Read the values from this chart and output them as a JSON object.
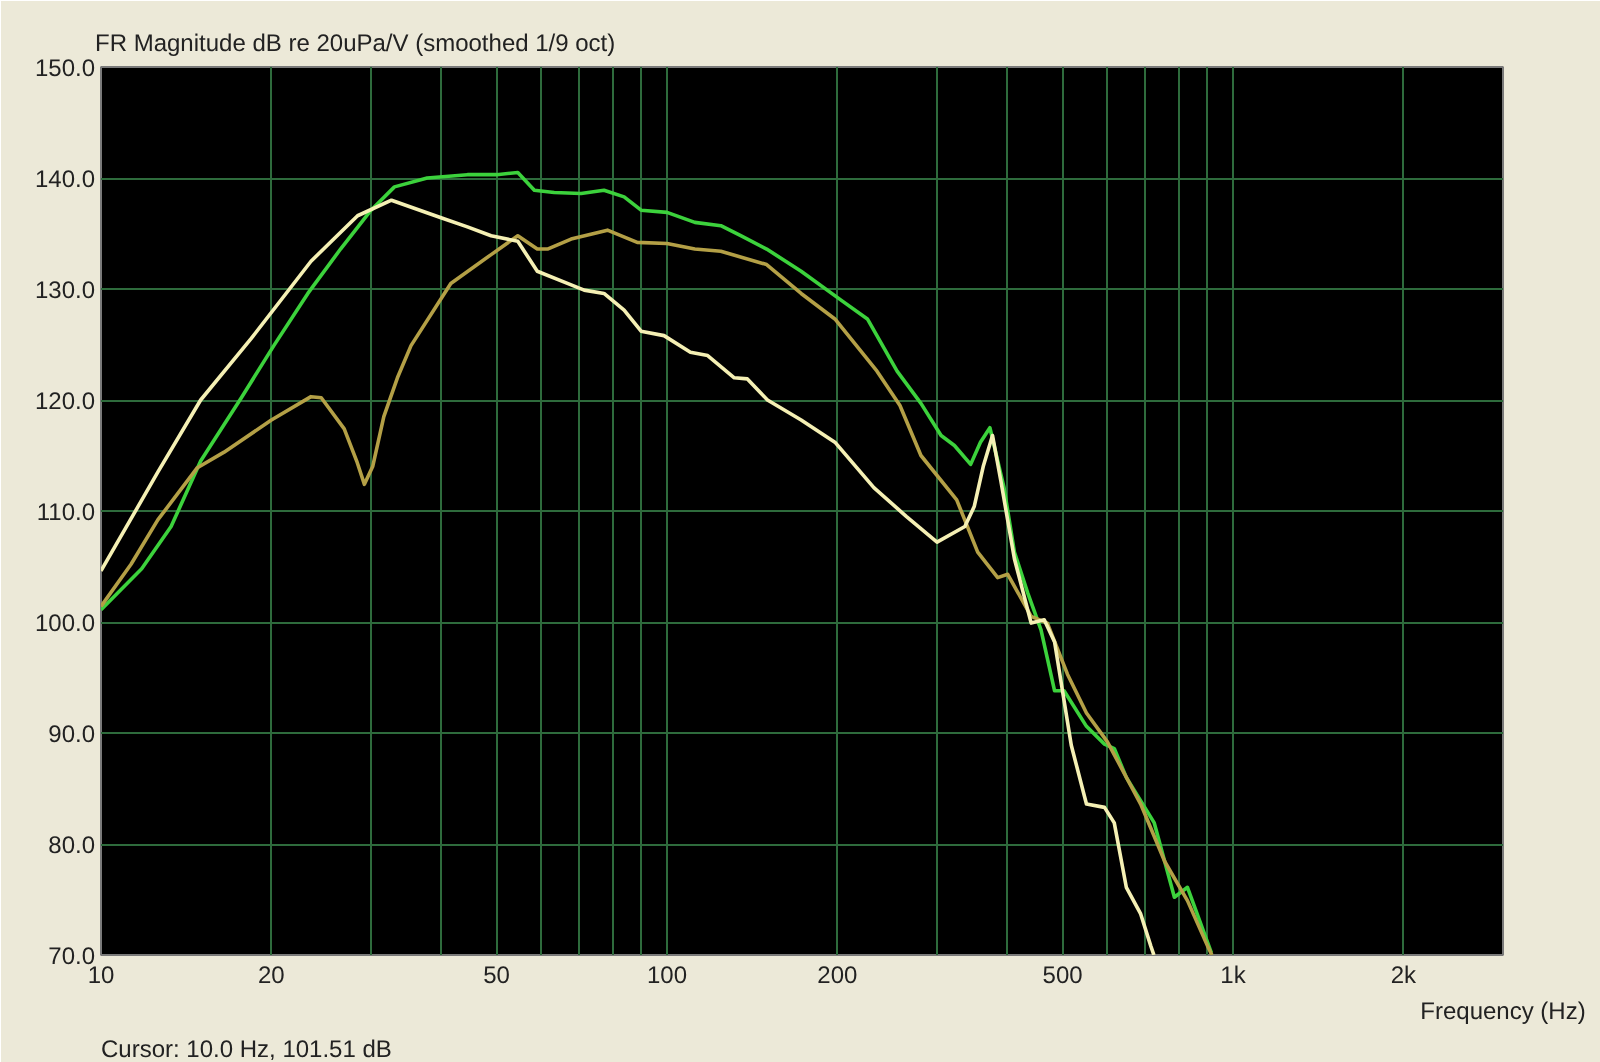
{
  "chart_data": {
    "type": "line",
    "title": "FR Magnitude dB re 20uPa/V (smoothed 1/9 oct)",
    "xlabel": "Frequency (Hz)",
    "annotations": [
      "Cursor: 10.0 Hz, 101.51 dB"
    ],
    "log": "x",
    "grid": true,
    "xlim": [
      10,
      3000
    ],
    "ylim": [
      70,
      150
    ],
    "xticks": [
      10,
      20,
      {
        "value": 30,
        "label": null
      },
      {
        "value": 40,
        "label": null
      },
      50,
      {
        "value": 60,
        "label": null
      },
      {
        "value": 70,
        "label": null
      },
      {
        "value": 80,
        "label": null
      },
      {
        "value": 90,
        "label": null
      },
      100,
      200,
      {
        "value": 300,
        "label": null
      },
      {
        "value": 400,
        "label": null
      },
      500,
      {
        "value": 600,
        "label": null
      },
      {
        "value": 700,
        "label": null
      },
      {
        "value": 800,
        "label": null
      },
      {
        "value": 900,
        "label": null
      },
      {
        "value": 1000,
        "label": "1k"
      },
      {
        "value": 2000,
        "label": "2k"
      }
    ],
    "yticks": [
      {
        "value": 70,
        "label": "70.0"
      },
      {
        "value": 80,
        "label": "80.0"
      },
      {
        "value": 90,
        "label": "90.0"
      },
      {
        "value": 100,
        "label": "100.0"
      },
      {
        "value": 110,
        "label": "110.0"
      },
      {
        "value": 120,
        "label": "120.0"
      },
      {
        "value": 130,
        "label": "130.0"
      },
      {
        "value": 140,
        "label": "140.0"
      },
      {
        "value": 150,
        "label": "150.0"
      }
    ],
    "series": [
      {
        "color": "#3cd23c",
        "x": [
          10,
          11.8,
          13.3,
          15,
          17.7,
          20.2,
          23.2,
          26.5,
          30,
          33,
          37.7,
          44.4,
          50,
          54.5,
          58.3,
          63.2,
          70.5,
          77.4,
          84,
          90,
          100,
          112,
          124.5,
          135,
          150,
          172.6,
          203,
          226,
          255,
          281,
          305,
          322,
          344,
          358,
          372,
          394,
          411,
          434,
          458,
          484,
          503,
          551,
          593,
          617,
          648,
          726,
          788,
          831,
          916
        ],
        "values": [
          101.1,
          104.8,
          108.6,
          114.5,
          120.2,
          124.9,
          129.6,
          133.6,
          137.1,
          139.2,
          140,
          140.3,
          140.3,
          140.5,
          138.9,
          138.7,
          138.6,
          138.9,
          138.3,
          137.1,
          136.9,
          136,
          135.7,
          134.8,
          133.6,
          131.6,
          129,
          127.3,
          122.6,
          119.7,
          116.8,
          115.9,
          114.2,
          116.2,
          117.5,
          112.1,
          106.3,
          102.6,
          99.3,
          93.8,
          93.8,
          90.6,
          89,
          88.6,
          86,
          81.9,
          75.2,
          76.1,
          70.2
        ]
      },
      {
        "color": "#b4a046",
        "x": [
          10,
          11.3,
          12.6,
          14.8,
          16.5,
          20,
          23.5,
          24.5,
          26.9,
          28.3,
          29.2,
          30.2,
          31.6,
          33.4,
          35.3,
          41.5,
          48.9,
          54.5,
          59,
          61.5,
          67.7,
          78.5,
          88.6,
          100,
          112,
          124.5,
          150,
          172.6,
          198,
          235,
          258,
          281,
          325,
          354,
          384,
          400,
          440,
          470,
          510,
          551,
          600,
          687,
          758,
          831,
          902,
          918
        ],
        "values": [
          101.4,
          105.2,
          109.2,
          113.9,
          115.3,
          118.2,
          120.3,
          120.2,
          117.4,
          114.5,
          112.4,
          114,
          118.5,
          122,
          124.9,
          130.5,
          133.1,
          134.8,
          133.6,
          133.6,
          134.5,
          135.3,
          134.2,
          134.1,
          133.6,
          133.4,
          132.2,
          129.6,
          127.3,
          122.6,
          119.5,
          115,
          111,
          106.3,
          104,
          104.3,
          100.5,
          99.9,
          95.3,
          91.8,
          89.2,
          83.6,
          78.4,
          74.9,
          70.8,
          70
        ]
      },
      {
        "color": "#f5f0b4",
        "x": [
          10,
          12.6,
          15,
          18.4,
          23.5,
          28.4,
          32.6,
          40,
          44.4,
          48.9,
          54.5,
          59,
          66.7,
          71.4,
          77.4,
          84,
          90,
          98.8,
          110,
          118,
          131.5,
          138.7,
          150.5,
          172.6,
          198,
          232,
          265,
          300,
          336,
          349,
          362,
          376,
          389,
          411,
          440,
          464,
          484,
          518,
          551,
          593,
          617,
          648,
          687,
          716,
          725
        ],
        "values": [
          104.6,
          113.5,
          120,
          125.5,
          132.5,
          136.6,
          138,
          136.4,
          135.6,
          134.8,
          134.3,
          131.6,
          130.5,
          129.9,
          129.6,
          128.1,
          126.2,
          125.8,
          124.3,
          124,
          122,
          121.9,
          120,
          118.2,
          116.2,
          112.1,
          109.5,
          107.2,
          108.6,
          110.4,
          114,
          116.8,
          112.7,
          105.7,
          99.9,
          100.2,
          98.2,
          88.9,
          83.6,
          83.3,
          81.9,
          76.1,
          73.7,
          70.8,
          70
        ]
      }
    ]
  }
}
